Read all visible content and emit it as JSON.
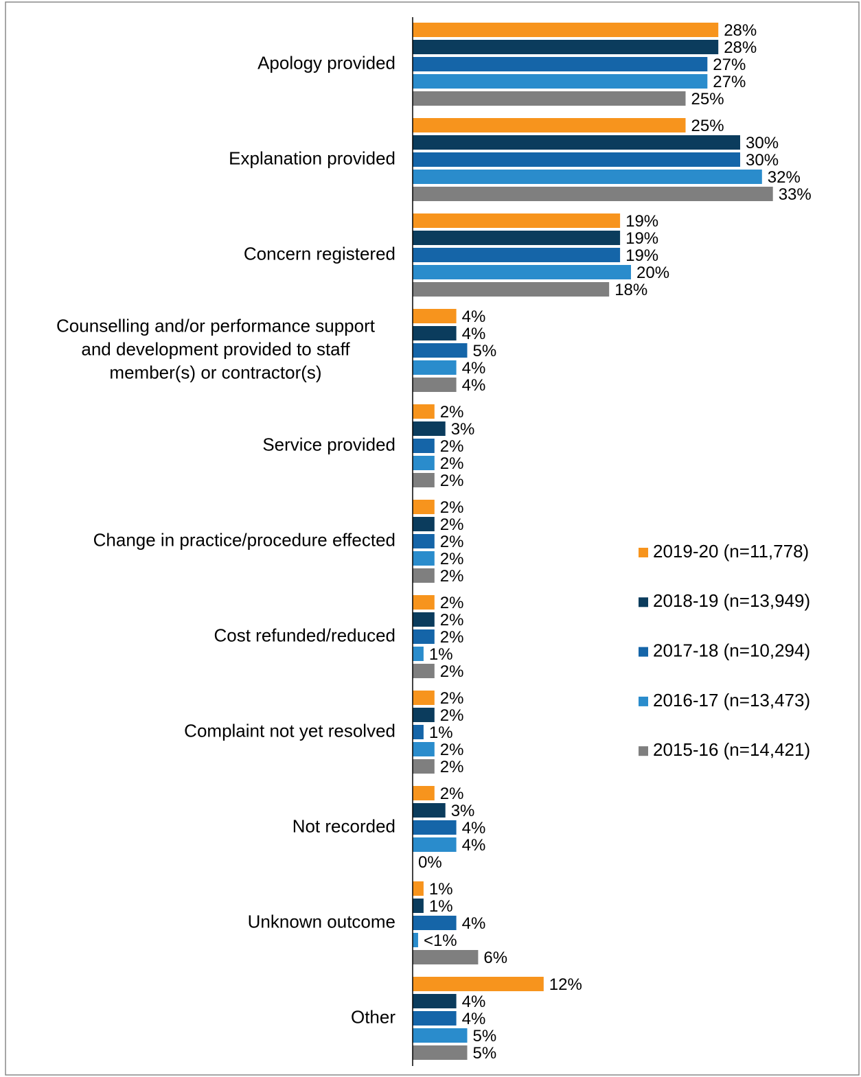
{
  "chart_data": {
    "type": "hbar",
    "categories": [
      "Apology provided",
      "Explanation provided",
      "Concern registered",
      "Counselling and/or performance support and development provided to staff member(s) or contractor(s)",
      "Service provided",
      "Change in practice/procedure effected",
      "Cost refunded/reduced",
      "Complaint not yet resolved",
      "Not recorded",
      "Unknown outcome",
      "Other"
    ],
    "xlim": [
      0,
      40
    ],
    "legend": "right",
    "series": [
      {
        "name": "2019-20 (n=11,778)",
        "color": "#f7941d",
        "values": [
          28,
          25,
          19,
          4,
          2,
          2,
          2,
          2,
          2,
          1,
          12
        ],
        "value_labels": [
          "28%",
          "25%",
          "19%",
          "4%",
          "2%",
          "2%",
          "2%",
          "2%",
          "2%",
          "1%",
          "12%"
        ]
      },
      {
        "name": "2018-19 (n=13,949)",
        "color": "#0b3c5d",
        "values": [
          28,
          30,
          19,
          4,
          3,
          2,
          2,
          2,
          3,
          1,
          4
        ],
        "value_labels": [
          "28%",
          "30%",
          "19%",
          "4%",
          "3%",
          "2%",
          "2%",
          "2%",
          "3%",
          "1%",
          "4%"
        ]
      },
      {
        "name": "2017-18 (n=10,294)",
        "color": "#1565a8",
        "values": [
          27,
          30,
          19,
          5,
          2,
          2,
          2,
          1,
          4,
          4,
          4
        ],
        "value_labels": [
          "27%",
          "30%",
          "19%",
          "5%",
          "2%",
          "2%",
          "2%",
          "1%",
          "4%",
          "4%",
          "4%"
        ]
      },
      {
        "name": "2016-17 (n=13,473)",
        "color": "#2a8ccc",
        "values": [
          27,
          32,
          20,
          4,
          2,
          2,
          1,
          2,
          4,
          0.5,
          5
        ],
        "value_labels": [
          "27%",
          "32%",
          "20%",
          "4%",
          "2%",
          "2%",
          "1%",
          "2%",
          "4%",
          "<1%",
          "5%"
        ]
      },
      {
        "name": "2015-16 (n=14,421)",
        "color": "#7f7f7f",
        "values": [
          25,
          33,
          18,
          4,
          2,
          2,
          2,
          2,
          0,
          6,
          5
        ],
        "value_labels": [
          "25%",
          "33%",
          "18%",
          "4%",
          "2%",
          "2%",
          "2%",
          "2%",
          "0%",
          "6%",
          "5%"
        ]
      }
    ]
  }
}
